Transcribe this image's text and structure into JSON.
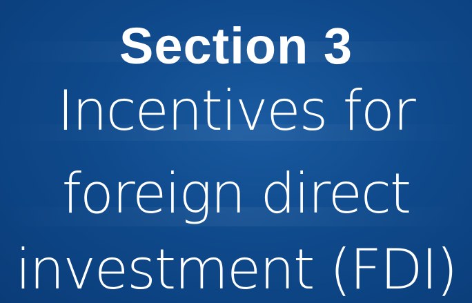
{
  "heading": "Section 3",
  "subtitle_lines": [
    "Incentives for",
    "foreign direct",
    "investment (FDI)"
  ]
}
